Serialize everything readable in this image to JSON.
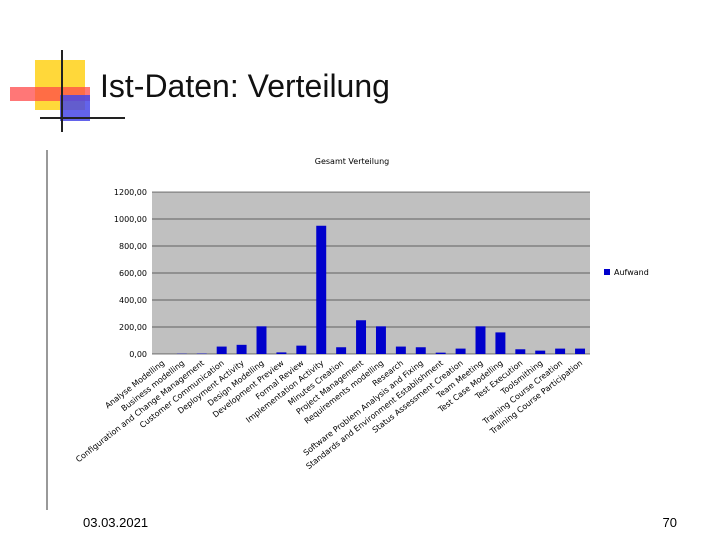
{
  "slide_title": "Ist-Daten: Verteilung",
  "footer": {
    "date": "03.03.2021",
    "page": "70"
  },
  "chart_data": {
    "type": "bar",
    "title": "Gesamt Verteilung",
    "categories": [
      "Analyse Modelling",
      "Business modelling",
      "Configuration and Change Management",
      "Customer Communication",
      "Deployment Activity",
      "Design Modelling",
      "Development Preview",
      "Formal Review",
      "Implementation Activity",
      "Minutes Creation",
      "Project Management",
      "Requirements modelling",
      "Research",
      "Software Problem Analysis and Fixing",
      "Standards and Environment Establishment",
      "Status Assessment Creation",
      "Team Meeting",
      "Test Case Modelling",
      "Test Execution",
      "Toolsmithing",
      "Training Course Creation",
      "Training Course Participation"
    ],
    "series": [
      {
        "name": "Aufwand",
        "color": "#0000cc",
        "values": [
          0,
          2,
          3,
          55,
          68,
          205,
          12,
          62,
          950,
          50,
          250,
          205,
          55,
          50,
          10,
          40,
          205,
          160,
          35,
          25,
          40,
          40
        ]
      }
    ],
    "ylim": [
      0,
      1200
    ],
    "yticks": [
      {
        "value": 0,
        "label": "0,00"
      },
      {
        "value": 200,
        "label": "200,00"
      },
      {
        "value": 400,
        "label": "400,00"
      },
      {
        "value": 600,
        "label": "600,00"
      },
      {
        "value": 800,
        "label": "800,00"
      },
      {
        "value": 1000,
        "label": "1000,00"
      },
      {
        "value": 1200,
        "label": "1200,00"
      }
    ],
    "grid": true,
    "legend": "right"
  }
}
